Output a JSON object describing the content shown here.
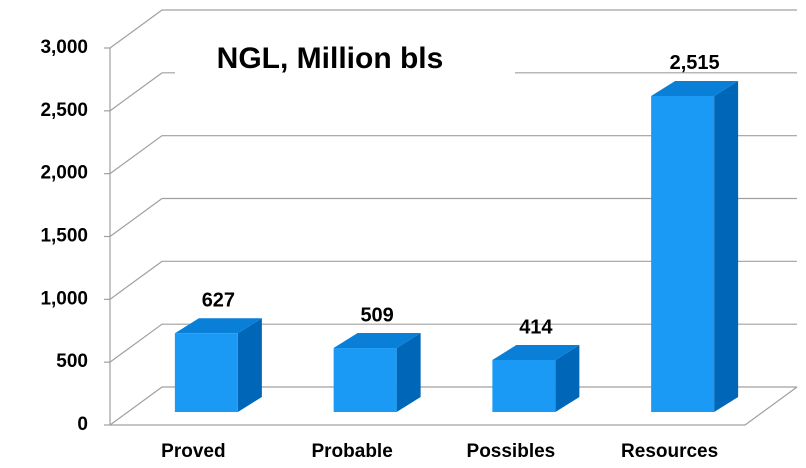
{
  "chart_data": {
    "type": "bar3d",
    "title": "NGL, Million bls",
    "categories": [
      "Proved",
      "Probable",
      "Possibles",
      "Resources"
    ],
    "values": [
      627,
      509,
      414,
      2515
    ],
    "value_labels": [
      "627",
      "509",
      "414",
      "2,515"
    ],
    "color": "#1a9af5",
    "ylim": [
      0,
      3000
    ],
    "yticks": [
      0,
      500,
      {
        "value": 1000,
        "label": "1,000"
      },
      {
        "value": 1500,
        "label": "1,500"
      },
      {
        "value": 2000,
        "label": "2,000"
      },
      {
        "value": 2500,
        "label": "2,500"
      },
      {
        "value": 3000,
        "label": "3,000"
      }
    ],
    "grid": true
  }
}
